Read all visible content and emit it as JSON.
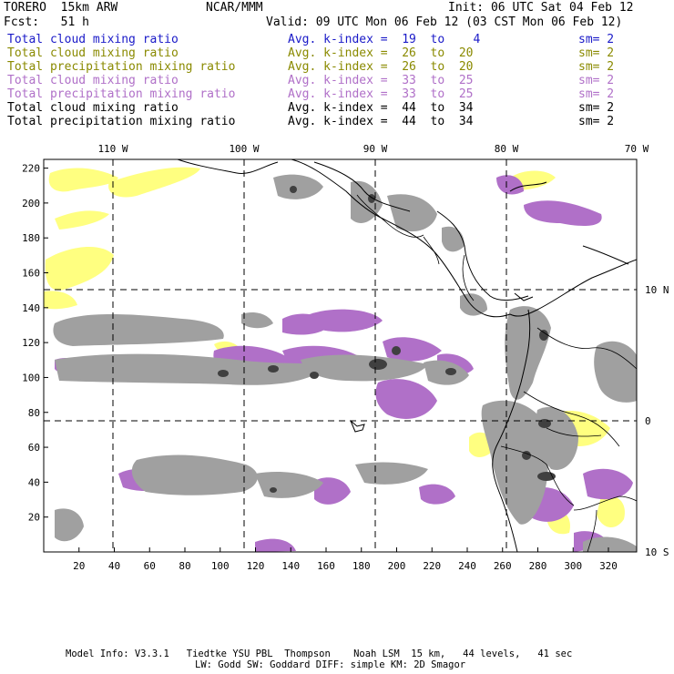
{
  "header": {
    "model": "TORERO  15km ARW",
    "org": "NCAR/MMM",
    "init": "Init: 06 UTC Sat 04 Feb 12",
    "fcst": "Fcst:   51 h",
    "valid": "Valid: 09 UTC Mon 06 Feb 12 (03 CST Mon 06 Feb 12)"
  },
  "legend": [
    {
      "field": "Total cloud mixing ratio",
      "kindex": "Avg. k-index =  19  to    4",
      "sm": "sm= 2",
      "color": "#1a1ac8"
    },
    {
      "field": "Total cloud mixing ratio",
      "kindex": "Avg. k-index =  26  to  20",
      "sm": "sm= 2",
      "color": "#8a8a00"
    },
    {
      "field": "Total precipitation mixing ratio",
      "kindex": "Avg. k-index =  26  to  20",
      "sm": "sm= 2",
      "color": "#8a8a00"
    },
    {
      "field": "Total cloud mixing ratio",
      "kindex": "Avg. k-index =  33  to  25",
      "sm": "sm= 2",
      "color": "#b070c8"
    },
    {
      "field": "Total precipitation mixing ratio",
      "kindex": "Avg. k-index =  33  to  25",
      "sm": "sm= 2",
      "color": "#b070c8"
    },
    {
      "field": "Total cloud mixing ratio",
      "kindex": "Avg. k-index =  44  to  34",
      "sm": "sm= 2",
      "color": "#000000"
    },
    {
      "field": "Total precipitation mixing ratio",
      "kindex": "Avg. k-index =  44  to  34",
      "sm": "sm= 2",
      "color": "#000000"
    }
  ],
  "axes": {
    "lon_labels": [
      "110 W",
      "100 W",
      "90 W",
      "80 W",
      "70 W"
    ],
    "lat_labels": [
      "10 N",
      "0",
      "10 S"
    ],
    "y_ticks": [
      "220",
      "200",
      "180",
      "160",
      "140",
      "120",
      "100",
      "80",
      "60",
      "40",
      "20"
    ],
    "x_ticks": [
      "20",
      "40",
      "60",
      "80",
      "100",
      "120",
      "140",
      "160",
      "180",
      "200",
      "220",
      "240",
      "260",
      "280",
      "300",
      "320"
    ],
    "y_range": [
      0,
      225
    ],
    "x_range": [
      0,
      336
    ]
  },
  "footer": {
    "line1": "Model Info: V3.3.1   Tiedtke YSU PBL  Thompson    Noah LSM  15 km,   44 levels,   41 sec",
    "line2": "LW: Godd SW: Goddard DIFF: simple KM: 2D Smagor"
  },
  "colors": {
    "cloud_yellow": "#ffff80",
    "cloud_purple": "#b070c8",
    "cloud_gray": "#a0a0a0",
    "cloud_dark": "#404040"
  }
}
